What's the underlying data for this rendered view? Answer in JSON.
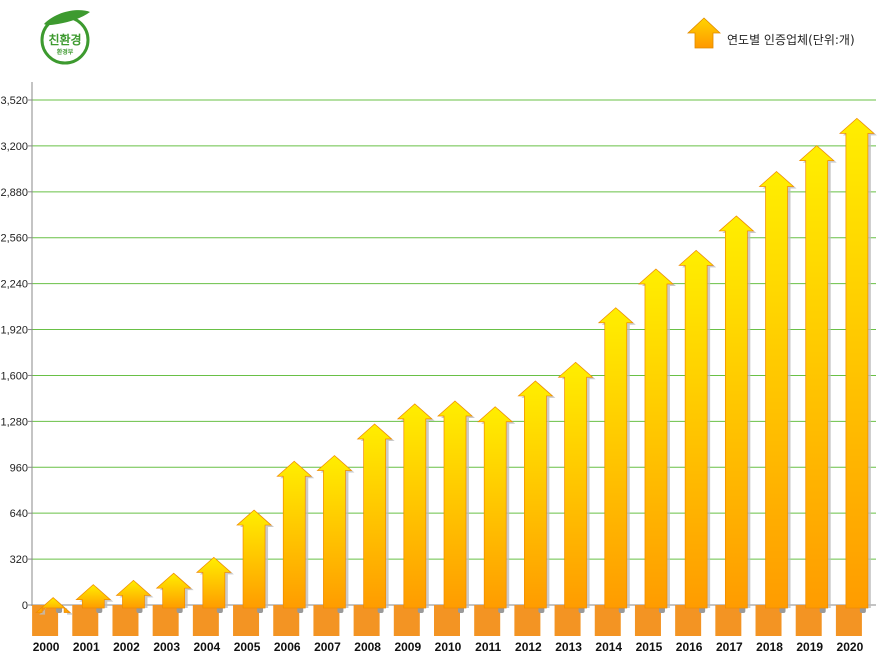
{
  "logo": {
    "main_text": "친환경",
    "sub_text": "환경부",
    "color": "#3d9a2f"
  },
  "legend": {
    "label": "연도별 인증업체(단위:개)"
  },
  "colors": {
    "arrow_top": "#ffee00",
    "arrow_bottom": "#ff9c00",
    "base_block": "#f39423",
    "grid": "#69c046",
    "axis": "#888888"
  },
  "chart_data": {
    "type": "bar",
    "title": "",
    "xlabel": "",
    "ylabel": "",
    "ylim": [
      0,
      3520
    ],
    "yticks": [
      "0",
      "320",
      "640",
      "960",
      "1,280",
      "1,600",
      "1,920",
      "2,240",
      "2,560",
      "2,880",
      "3,200",
      "3,520"
    ],
    "ytick_values": [
      0,
      320,
      640,
      960,
      1280,
      1600,
      1920,
      2240,
      2560,
      2880,
      3200,
      3520
    ],
    "grid": true,
    "legend_position": "top-right",
    "categories": [
      "2000",
      "2001",
      "2002",
      "2003",
      "2004",
      "2005",
      "2006",
      "2007",
      "2008",
      "2009",
      "2010",
      "2011",
      "2012",
      "2013",
      "2014",
      "2015",
      "2016",
      "2017",
      "2018",
      "2019",
      "2020"
    ],
    "series": [
      {
        "name": "연도별 인증업체(단위:개)",
        "values": [
          10,
          100,
          130,
          180,
          290,
          620,
          960,
          1000,
          1220,
          1360,
          1380,
          1340,
          1520,
          1650,
          2030,
          2300,
          2430,
          2670,
          2980,
          3160,
          3350
        ]
      }
    ]
  }
}
